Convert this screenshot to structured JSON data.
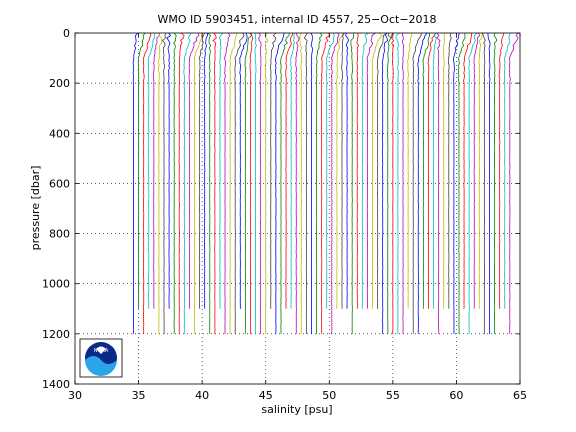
{
  "chart_data": {
    "type": "line",
    "title": "WMO ID 5903451, internal ID 4557, 25−Oct−2018",
    "xlabel": "salinity [psu]",
    "ylabel": "pressure [dbar]",
    "xlim": [
      30,
      65
    ],
    "ylim": [
      0,
      1400
    ],
    "y_reversed": true,
    "grid": true,
    "x_ticks": [
      "30",
      "35",
      "40",
      "45",
      "50",
      "55",
      "60",
      "65"
    ],
    "y_ticks": [
      "0",
      "200",
      "400",
      "600",
      "800",
      "1000",
      "1200",
      "1400"
    ],
    "profiles": {
      "count": 75,
      "first_deep_salinity": 34.6,
      "salinity_offset_step": 0.4,
      "surface_freshening": 0.6,
      "mixed_layer_depth": 100,
      "max_pressure": 1200,
      "colors": [
        "#0000ff",
        "#008000",
        "#ff0000",
        "#00bfbf",
        "#bf00bf",
        "#bfbf00",
        "#404040"
      ]
    }
  },
  "logo": {
    "text": "NOAA"
  }
}
